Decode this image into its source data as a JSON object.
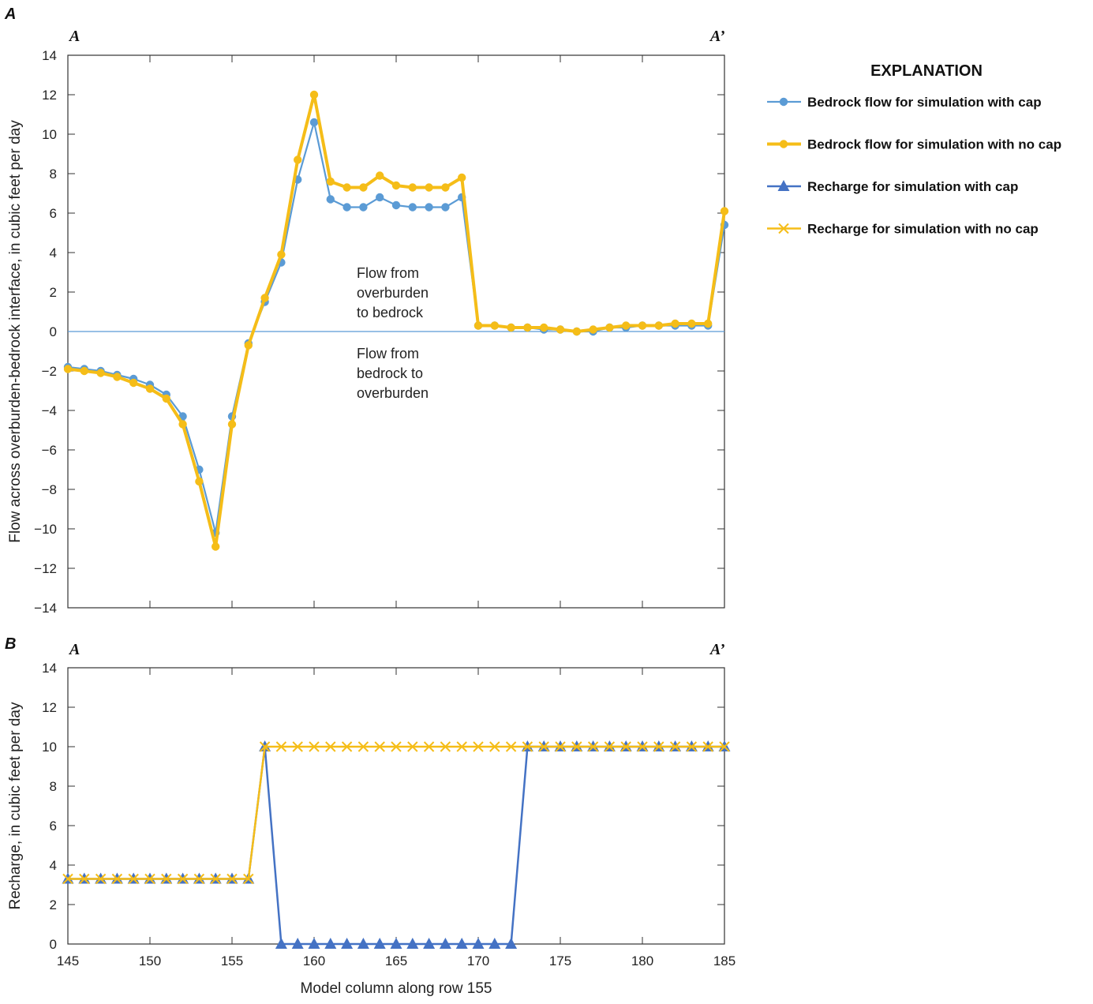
{
  "panels": {
    "a": {
      "letter": "A",
      "left_section": "A",
      "right_section": "A’"
    },
    "b": {
      "letter": "B",
      "left_section": "A",
      "right_section": "A’"
    }
  },
  "annotations": {
    "upper": [
      "Flow from",
      "overburden",
      "to bedrock"
    ],
    "lower": [
      "Flow from",
      "bedrock to",
      "overburden"
    ]
  },
  "legend": {
    "title": "EXPLANATION",
    "items": [
      {
        "label": "Bedrock flow for simulation with cap",
        "color": "#5b9bd5",
        "marker": "circle"
      },
      {
        "label": "Bedrock flow for simulation with no cap",
        "color": "#f5bd18",
        "marker": "circle"
      },
      {
        "label": "Recharge for simulation with cap",
        "color": "#4472c4",
        "marker": "triangle"
      },
      {
        "label": "Recharge for simulation with no cap",
        "color": "#f5bd18",
        "marker": "x"
      }
    ]
  },
  "colors": {
    "cap_flow": "#5b9bd5",
    "nocap_flow": "#f5bd18",
    "cap_recharge": "#4472c4",
    "nocap_recharge": "#f5bd18",
    "zero_line": "#5b9bd5"
  },
  "chart_data": [
    {
      "type": "line",
      "panel": "A",
      "xlabel": "",
      "ylabel": "Flow across overburden-bedrock interface, in cubic feet per day",
      "xlim": [
        145,
        185
      ],
      "ylim": [
        -14,
        14
      ],
      "x_ticks": [
        145,
        150,
        155,
        160,
        165,
        170,
        175,
        180,
        185
      ],
      "y_ticks": [
        -14,
        -12,
        -10,
        -8,
        -6,
        -4,
        -2,
        0,
        2,
        4,
        6,
        8,
        10,
        12,
        14
      ],
      "y_tick_labels": [
        "−14",
        "−12",
        "−10",
        "−8",
        "−6",
        "−4",
        "−2",
        "0",
        "2",
        "4",
        "6",
        "8",
        "10",
        "12",
        "14"
      ],
      "x": [
        145,
        146,
        147,
        148,
        149,
        150,
        151,
        152,
        153,
        154,
        155,
        156,
        157,
        158,
        159,
        160,
        161,
        162,
        163,
        164,
        165,
        166,
        167,
        168,
        169,
        170,
        171,
        172,
        173,
        174,
        175,
        176,
        177,
        178,
        179,
        180,
        181,
        182,
        183,
        184,
        185
      ],
      "series": [
        {
          "name": "Bedrock flow for simulation with cap",
          "values": [
            -1.8,
            -1.9,
            -2.0,
            -2.2,
            -2.4,
            -2.7,
            -3.2,
            -4.3,
            -7.0,
            -10.2,
            -4.3,
            -0.6,
            1.5,
            3.5,
            7.7,
            10.6,
            6.7,
            6.3,
            6.3,
            6.8,
            6.4,
            6.3,
            6.3,
            6.3,
            6.8,
            0.3,
            0.3,
            0.2,
            0.2,
            0.1,
            0.1,
            0.0,
            0.0,
            0.2,
            0.2,
            0.3,
            0.3,
            0.3,
            0.3,
            0.3,
            5.4
          ]
        },
        {
          "name": "Bedrock flow for simulation with no cap",
          "values": [
            -1.9,
            -2.0,
            -2.1,
            -2.3,
            -2.6,
            -2.9,
            -3.4,
            -4.7,
            -7.6,
            -10.9,
            -4.7,
            -0.7,
            1.7,
            3.9,
            8.7,
            12.0,
            7.6,
            7.3,
            7.3,
            7.9,
            7.4,
            7.3,
            7.3,
            7.3,
            7.8,
            0.3,
            0.3,
            0.2,
            0.2,
            0.2,
            0.1,
            0.0,
            0.1,
            0.2,
            0.3,
            0.3,
            0.3,
            0.4,
            0.4,
            0.4,
            6.1
          ]
        }
      ]
    },
    {
      "type": "line",
      "panel": "B",
      "xlabel": "Model column along row 155",
      "ylabel": "Recharge, in cubic feet per day",
      "xlim": [
        145,
        185
      ],
      "ylim": [
        0,
        14
      ],
      "x_ticks": [
        145,
        150,
        155,
        160,
        165,
        170,
        175,
        180,
        185
      ],
      "y_ticks": [
        0,
        2,
        4,
        6,
        8,
        10,
        12,
        14
      ],
      "x": [
        145,
        146,
        147,
        148,
        149,
        150,
        151,
        152,
        153,
        154,
        155,
        156,
        157,
        158,
        159,
        160,
        161,
        162,
        163,
        164,
        165,
        166,
        167,
        168,
        169,
        170,
        171,
        172,
        173,
        174,
        175,
        176,
        177,
        178,
        179,
        180,
        181,
        182,
        183,
        184,
        185
      ],
      "series": [
        {
          "name": "Recharge for simulation with cap",
          "values": [
            3.3,
            3.3,
            3.3,
            3.3,
            3.3,
            3.3,
            3.3,
            3.3,
            3.3,
            3.3,
            3.3,
            3.3,
            10,
            0,
            0,
            0,
            0,
            0,
            0,
            0,
            0,
            0,
            0,
            0,
            0,
            0,
            0,
            0,
            10,
            10,
            10,
            10,
            10,
            10,
            10,
            10,
            10,
            10,
            10,
            10,
            10
          ]
        },
        {
          "name": "Recharge for simulation with no cap",
          "values": [
            3.3,
            3.3,
            3.3,
            3.3,
            3.3,
            3.3,
            3.3,
            3.3,
            3.3,
            3.3,
            3.3,
            3.3,
            10,
            10,
            10,
            10,
            10,
            10,
            10,
            10,
            10,
            10,
            10,
            10,
            10,
            10,
            10,
            10,
            10,
            10,
            10,
            10,
            10,
            10,
            10,
            10,
            10,
            10,
            10,
            10,
            10
          ]
        }
      ]
    }
  ]
}
